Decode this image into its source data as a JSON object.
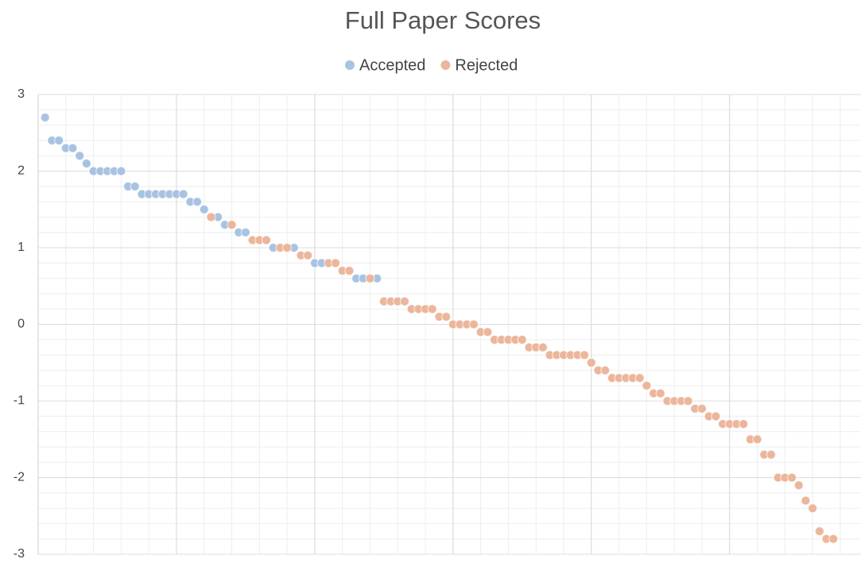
{
  "chart_data": {
    "type": "scatter",
    "title": "Full Paper Scores",
    "xlim": [
      0,
      119
    ],
    "ylim": [
      -3,
      3
    ],
    "yticks": [
      -3,
      -2,
      -1,
      0,
      1,
      2,
      3
    ],
    "grid": true,
    "legend": "top",
    "series": [
      {
        "name": "Accepted",
        "color": "#a8c3e2",
        "x": [
          1,
          2,
          3,
          4,
          5,
          6,
          7,
          8,
          9,
          10,
          11,
          12,
          13,
          14,
          15,
          16,
          17,
          18,
          19,
          20,
          21,
          22,
          23,
          24,
          26,
          27,
          29,
          30,
          34,
          37,
          40,
          41,
          46,
          47,
          49
        ],
        "values": [
          2.7,
          2.4,
          2.4,
          2.3,
          2.3,
          2.2,
          2.1,
          2.0,
          2.0,
          2.0,
          2.0,
          2.0,
          1.8,
          1.8,
          1.7,
          1.7,
          1.7,
          1.7,
          1.7,
          1.7,
          1.7,
          1.6,
          1.6,
          1.5,
          1.4,
          1.3,
          1.2,
          1.2,
          1.0,
          1.0,
          0.8,
          0.8,
          0.6,
          0.6,
          0.6
        ]
      },
      {
        "name": "Rejected",
        "color": "#ebb69b",
        "x": [
          25,
          28,
          31,
          32,
          33,
          35,
          36,
          38,
          39,
          42,
          43,
          44,
          45,
          48,
          50,
          51,
          52,
          53,
          54,
          55,
          56,
          57,
          58,
          59,
          60,
          61,
          62,
          63,
          64,
          65,
          66,
          67,
          68,
          69,
          70,
          71,
          72,
          73,
          74,
          75,
          76,
          77,
          78,
          79,
          80,
          81,
          82,
          83,
          84,
          85,
          86,
          87,
          88,
          89,
          90,
          91,
          92,
          93,
          94,
          95,
          96,
          97,
          98,
          99,
          100,
          101,
          102,
          103,
          104,
          105,
          106,
          107,
          108,
          109,
          110,
          111,
          112,
          113,
          114,
          115
        ],
        "values": [
          1.4,
          1.3,
          1.1,
          1.1,
          1.1,
          1.0,
          1.0,
          0.9,
          0.9,
          0.8,
          0.8,
          0.7,
          0.7,
          0.6,
          0.3,
          0.3,
          0.3,
          0.3,
          0.2,
          0.2,
          0.2,
          0.2,
          0.1,
          0.1,
          0.0,
          0.0,
          0.0,
          0.0,
          -0.1,
          -0.1,
          -0.2,
          -0.2,
          -0.2,
          -0.2,
          -0.2,
          -0.3,
          -0.3,
          -0.3,
          -0.4,
          -0.4,
          -0.4,
          -0.4,
          -0.4,
          -0.4,
          -0.5,
          -0.6,
          -0.6,
          -0.7,
          -0.7,
          -0.7,
          -0.7,
          -0.7,
          -0.8,
          -0.9,
          -0.9,
          -1.0,
          -1.0,
          -1.0,
          -1.0,
          -1.1,
          -1.1,
          -1.2,
          -1.2,
          -1.3,
          -1.3,
          -1.3,
          -1.3,
          -1.5,
          -1.5,
          -1.7,
          -1.7,
          -2.0,
          -2.0,
          -2.0,
          -2.1,
          -2.3,
          -2.4,
          -2.7,
          -2.8,
          -2.8
        ]
      }
    ]
  }
}
